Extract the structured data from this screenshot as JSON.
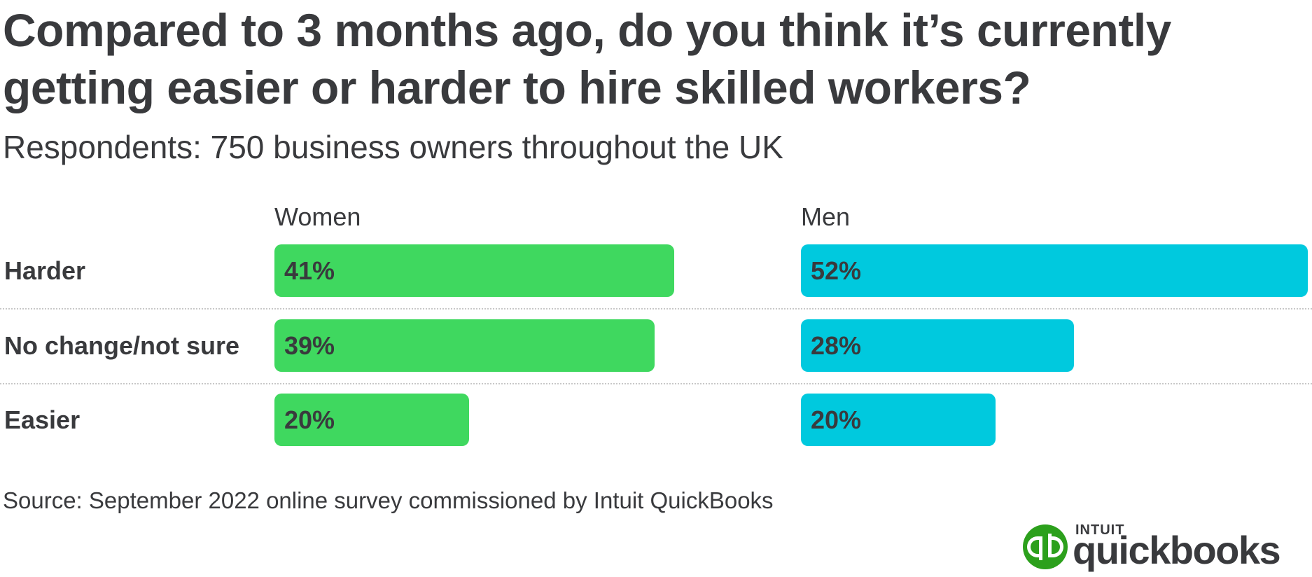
{
  "chart_data": {
    "type": "bar",
    "title": "Compared to 3 months ago, do you think it’s currently getting easier or harder to hire skilled workers?",
    "subtitle": "Respondents: 750 business owners throughout the UK",
    "categories": [
      "Harder",
      "No change/not sure",
      "Easier"
    ],
    "series": [
      {
        "name": "Women",
        "values": [
          41,
          39,
          20
        ],
        "value_labels": [
          "41%",
          "39%",
          "20%"
        ],
        "color": "#3fd85f"
      },
      {
        "name": "Men",
        "values": [
          52,
          28,
          20
        ],
        "value_labels": [
          "52%",
          "28%",
          "20%"
        ],
        "color": "#00c9de"
      }
    ],
    "value_unit": "%",
    "scale_max": 52,
    "orientation": "horizontal",
    "layout": "small-multiples-side-by-side",
    "grid": false,
    "row_separators": "dotted",
    "source": "Source: September 2022 online survey commissioned by Intuit QuickBooks"
  },
  "logo": {
    "brand": "INTUIT",
    "product": "quickbooks",
    "icon": "quickbooks-logo-icon",
    "color": "#2ca01c"
  }
}
